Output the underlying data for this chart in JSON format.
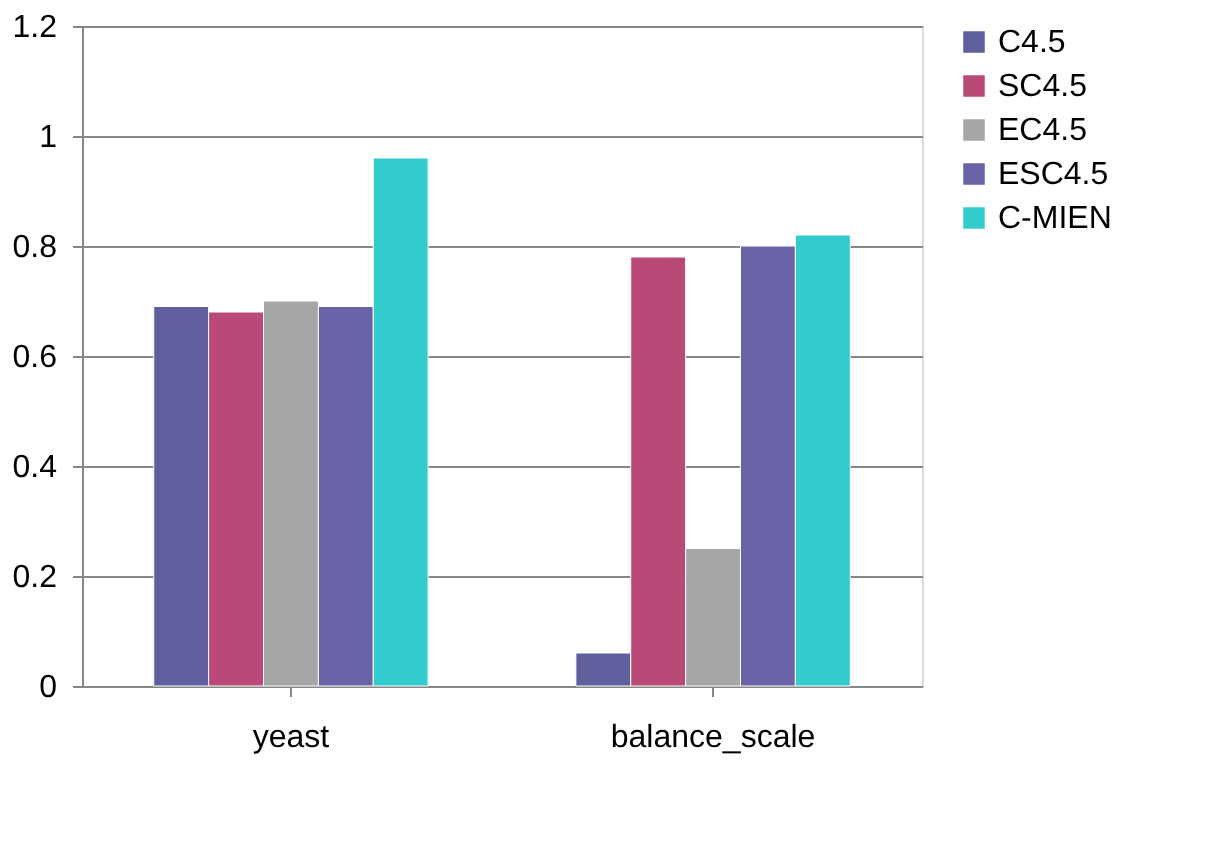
{
  "chart_data": {
    "type": "bar",
    "categories": [
      "yeast",
      "balance_scale"
    ],
    "series": [
      {
        "name": "C4.5",
        "color": "#5f5f9e",
        "values": [
          0.69,
          0.06
        ]
      },
      {
        "name": "SC4.5",
        "color": "#b94a78",
        "values": [
          0.68,
          0.78
        ]
      },
      {
        "name": "EC4.5",
        "color": "#a6a6a6",
        "values": [
          0.7,
          0.25
        ]
      },
      {
        "name": "ESC4.5",
        "color": "#6a62a6",
        "values": [
          0.69,
          0.8
        ]
      },
      {
        "name": "C-MIEN",
        "color": "#33cccc",
        "values": [
          0.96,
          0.82
        ]
      }
    ],
    "ylim": [
      0,
      1.2
    ],
    "yticks": [
      0,
      0.2,
      0.4,
      0.6,
      0.8,
      1,
      1.2
    ],
    "grid": "y",
    "legend": "right"
  }
}
